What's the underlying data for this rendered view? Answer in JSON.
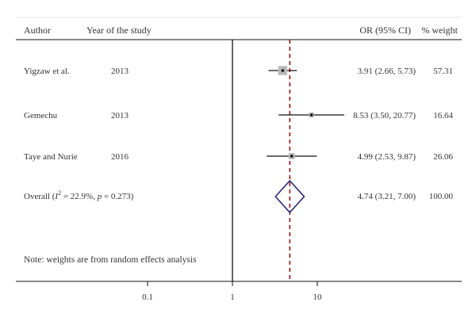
{
  "chart_data": {
    "type": "forest",
    "header": {
      "author": "Author",
      "year": "Year of the study",
      "or": "OR (95% CI)",
      "weight": "% weight"
    },
    "studies": [
      {
        "author": "Yigzaw et al.",
        "year": "2013",
        "or": 3.91,
        "ci_low": 2.66,
        "ci_high": 5.73,
        "or_text": "3.91 (2.66, 5.73)",
        "weight": 57.31,
        "weight_text": "57.31"
      },
      {
        "author": "Gemechu",
        "year": "2013",
        "or": 8.53,
        "ci_low": 3.5,
        "ci_high": 20.77,
        "or_text": "8.53 (3.50, 20.77)",
        "weight": 16.64,
        "weight_text": "16.64"
      },
      {
        "author": "Taye and Nurie",
        "year": "2016",
        "or": 4.99,
        "ci_low": 2.53,
        "ci_high": 9.87,
        "or_text": "4.99 (2.53, 9.87)",
        "weight": 26.06,
        "weight_text": "26.06"
      }
    ],
    "overall": {
      "label_prefix": "Overall (",
      "i_symbol": "I",
      "sup": "2",
      "label_mid": " = 22.9%, ",
      "p_symbol": "p",
      "label_suffix": " = 0.273)",
      "or": 4.74,
      "ci_low": 3.21,
      "ci_high": 7.0,
      "or_text": "4.74 (3.21, 7.00)",
      "weight_text": "100.00"
    },
    "note": "Note: weights are from random effects analysis",
    "x_axis": {
      "scale": "log",
      "ticks": [
        0.1,
        1,
        10
      ],
      "tick_labels": [
        "0.1",
        "1",
        "10"
      ],
      "null_line": 1
    },
    "colors": {
      "diamond": "#2a2a7a",
      "pooled_line": "#a01010",
      "box": "#b8b8b8",
      "line": "#111111",
      "text": "#333333"
    }
  }
}
